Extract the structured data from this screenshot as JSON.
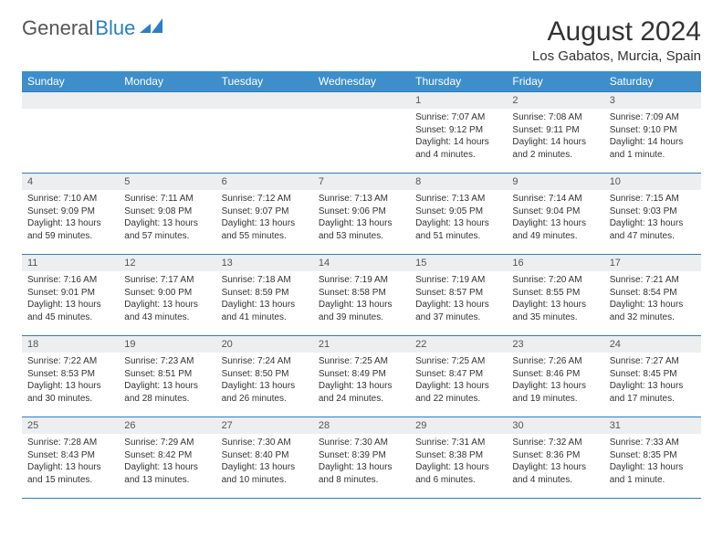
{
  "brand": {
    "part1": "General",
    "part2": "Blue"
  },
  "title": "August 2024",
  "location": "Los Gabatos, Murcia, Spain",
  "colors": {
    "header_bg": "#3d8ecb",
    "header_fg": "#ffffff",
    "rule": "#2a7fc4",
    "daynum_bg": "#eceeef",
    "body_text": "#333333"
  },
  "fonts": {
    "title_size_pt": 30,
    "location_size_pt": 15,
    "dow_size_pt": 12,
    "daynum_size_pt": 11,
    "body_size_pt": 10
  },
  "days_of_week": [
    "Sunday",
    "Monday",
    "Tuesday",
    "Wednesday",
    "Thursday",
    "Friday",
    "Saturday"
  ],
  "weeks": [
    [
      {
        "n": "",
        "sr": "",
        "ss": "",
        "dl": ""
      },
      {
        "n": "",
        "sr": "",
        "ss": "",
        "dl": ""
      },
      {
        "n": "",
        "sr": "",
        "ss": "",
        "dl": ""
      },
      {
        "n": "",
        "sr": "",
        "ss": "",
        "dl": ""
      },
      {
        "n": "1",
        "sr": "Sunrise: 7:07 AM",
        "ss": "Sunset: 9:12 PM",
        "dl": "Daylight: 14 hours and 4 minutes."
      },
      {
        "n": "2",
        "sr": "Sunrise: 7:08 AM",
        "ss": "Sunset: 9:11 PM",
        "dl": "Daylight: 14 hours and 2 minutes."
      },
      {
        "n": "3",
        "sr": "Sunrise: 7:09 AM",
        "ss": "Sunset: 9:10 PM",
        "dl": "Daylight: 14 hours and 1 minute."
      }
    ],
    [
      {
        "n": "4",
        "sr": "Sunrise: 7:10 AM",
        "ss": "Sunset: 9:09 PM",
        "dl": "Daylight: 13 hours and 59 minutes."
      },
      {
        "n": "5",
        "sr": "Sunrise: 7:11 AM",
        "ss": "Sunset: 9:08 PM",
        "dl": "Daylight: 13 hours and 57 minutes."
      },
      {
        "n": "6",
        "sr": "Sunrise: 7:12 AM",
        "ss": "Sunset: 9:07 PM",
        "dl": "Daylight: 13 hours and 55 minutes."
      },
      {
        "n": "7",
        "sr": "Sunrise: 7:13 AM",
        "ss": "Sunset: 9:06 PM",
        "dl": "Daylight: 13 hours and 53 minutes."
      },
      {
        "n": "8",
        "sr": "Sunrise: 7:13 AM",
        "ss": "Sunset: 9:05 PM",
        "dl": "Daylight: 13 hours and 51 minutes."
      },
      {
        "n": "9",
        "sr": "Sunrise: 7:14 AM",
        "ss": "Sunset: 9:04 PM",
        "dl": "Daylight: 13 hours and 49 minutes."
      },
      {
        "n": "10",
        "sr": "Sunrise: 7:15 AM",
        "ss": "Sunset: 9:03 PM",
        "dl": "Daylight: 13 hours and 47 minutes."
      }
    ],
    [
      {
        "n": "11",
        "sr": "Sunrise: 7:16 AM",
        "ss": "Sunset: 9:01 PM",
        "dl": "Daylight: 13 hours and 45 minutes."
      },
      {
        "n": "12",
        "sr": "Sunrise: 7:17 AM",
        "ss": "Sunset: 9:00 PM",
        "dl": "Daylight: 13 hours and 43 minutes."
      },
      {
        "n": "13",
        "sr": "Sunrise: 7:18 AM",
        "ss": "Sunset: 8:59 PM",
        "dl": "Daylight: 13 hours and 41 minutes."
      },
      {
        "n": "14",
        "sr": "Sunrise: 7:19 AM",
        "ss": "Sunset: 8:58 PM",
        "dl": "Daylight: 13 hours and 39 minutes."
      },
      {
        "n": "15",
        "sr": "Sunrise: 7:19 AM",
        "ss": "Sunset: 8:57 PM",
        "dl": "Daylight: 13 hours and 37 minutes."
      },
      {
        "n": "16",
        "sr": "Sunrise: 7:20 AM",
        "ss": "Sunset: 8:55 PM",
        "dl": "Daylight: 13 hours and 35 minutes."
      },
      {
        "n": "17",
        "sr": "Sunrise: 7:21 AM",
        "ss": "Sunset: 8:54 PM",
        "dl": "Daylight: 13 hours and 32 minutes."
      }
    ],
    [
      {
        "n": "18",
        "sr": "Sunrise: 7:22 AM",
        "ss": "Sunset: 8:53 PM",
        "dl": "Daylight: 13 hours and 30 minutes."
      },
      {
        "n": "19",
        "sr": "Sunrise: 7:23 AM",
        "ss": "Sunset: 8:51 PM",
        "dl": "Daylight: 13 hours and 28 minutes."
      },
      {
        "n": "20",
        "sr": "Sunrise: 7:24 AM",
        "ss": "Sunset: 8:50 PM",
        "dl": "Daylight: 13 hours and 26 minutes."
      },
      {
        "n": "21",
        "sr": "Sunrise: 7:25 AM",
        "ss": "Sunset: 8:49 PM",
        "dl": "Daylight: 13 hours and 24 minutes."
      },
      {
        "n": "22",
        "sr": "Sunrise: 7:25 AM",
        "ss": "Sunset: 8:47 PM",
        "dl": "Daylight: 13 hours and 22 minutes."
      },
      {
        "n": "23",
        "sr": "Sunrise: 7:26 AM",
        "ss": "Sunset: 8:46 PM",
        "dl": "Daylight: 13 hours and 19 minutes."
      },
      {
        "n": "24",
        "sr": "Sunrise: 7:27 AM",
        "ss": "Sunset: 8:45 PM",
        "dl": "Daylight: 13 hours and 17 minutes."
      }
    ],
    [
      {
        "n": "25",
        "sr": "Sunrise: 7:28 AM",
        "ss": "Sunset: 8:43 PM",
        "dl": "Daylight: 13 hours and 15 minutes."
      },
      {
        "n": "26",
        "sr": "Sunrise: 7:29 AM",
        "ss": "Sunset: 8:42 PM",
        "dl": "Daylight: 13 hours and 13 minutes."
      },
      {
        "n": "27",
        "sr": "Sunrise: 7:30 AM",
        "ss": "Sunset: 8:40 PM",
        "dl": "Daylight: 13 hours and 10 minutes."
      },
      {
        "n": "28",
        "sr": "Sunrise: 7:30 AM",
        "ss": "Sunset: 8:39 PM",
        "dl": "Daylight: 13 hours and 8 minutes."
      },
      {
        "n": "29",
        "sr": "Sunrise: 7:31 AM",
        "ss": "Sunset: 8:38 PM",
        "dl": "Daylight: 13 hours and 6 minutes."
      },
      {
        "n": "30",
        "sr": "Sunrise: 7:32 AM",
        "ss": "Sunset: 8:36 PM",
        "dl": "Daylight: 13 hours and 4 minutes."
      },
      {
        "n": "31",
        "sr": "Sunrise: 7:33 AM",
        "ss": "Sunset: 8:35 PM",
        "dl": "Daylight: 13 hours and 1 minute."
      }
    ]
  ]
}
